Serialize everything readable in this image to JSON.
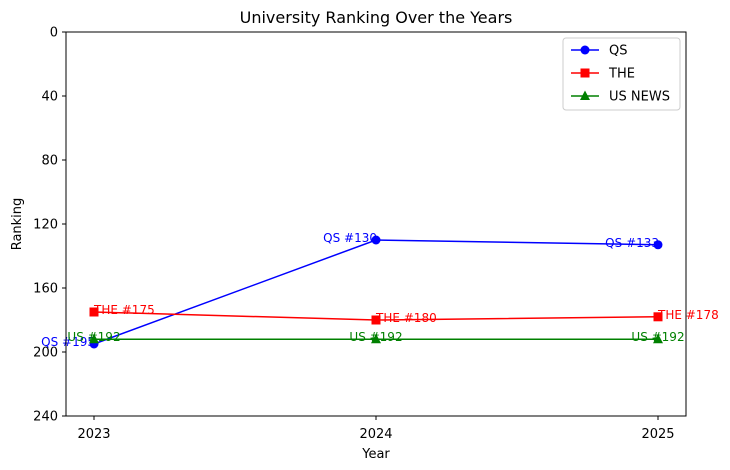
{
  "chart_data": {
    "type": "line",
    "title": "University Ranking Over the Years",
    "xlabel": "Year",
    "ylabel": "Ranking",
    "x": [
      2023,
      2024,
      2025
    ],
    "xtick_labels": [
      "2023",
      "2024",
      "2025"
    ],
    "yticks": [
      0,
      40,
      80,
      120,
      160,
      200,
      240
    ],
    "ytick_labels": [
      "0",
      "40",
      "80",
      "120",
      "160",
      "200",
      "240"
    ],
    "ylim": [
      0,
      240
    ],
    "y_inverted": true,
    "grid": false,
    "legend_position": "top-right",
    "series": [
      {
        "name": "QS",
        "values": [
          195,
          130,
          133
        ],
        "labels": [
          "QS #195",
          "QS #130",
          "QS #133"
        ],
        "color": "#0000ff",
        "marker": "circle"
      },
      {
        "name": "THE",
        "values": [
          175,
          180,
          178
        ],
        "labels": [
          "THE #175",
          "THE #180",
          "THE #178"
        ],
        "color": "#ff0000",
        "marker": "square"
      },
      {
        "name": "US NEWS",
        "values": [
          192,
          192,
          192
        ],
        "labels": [
          "US #192",
          "US #192",
          "US #192"
        ],
        "color": "#008000",
        "marker": "triangle"
      }
    ]
  }
}
